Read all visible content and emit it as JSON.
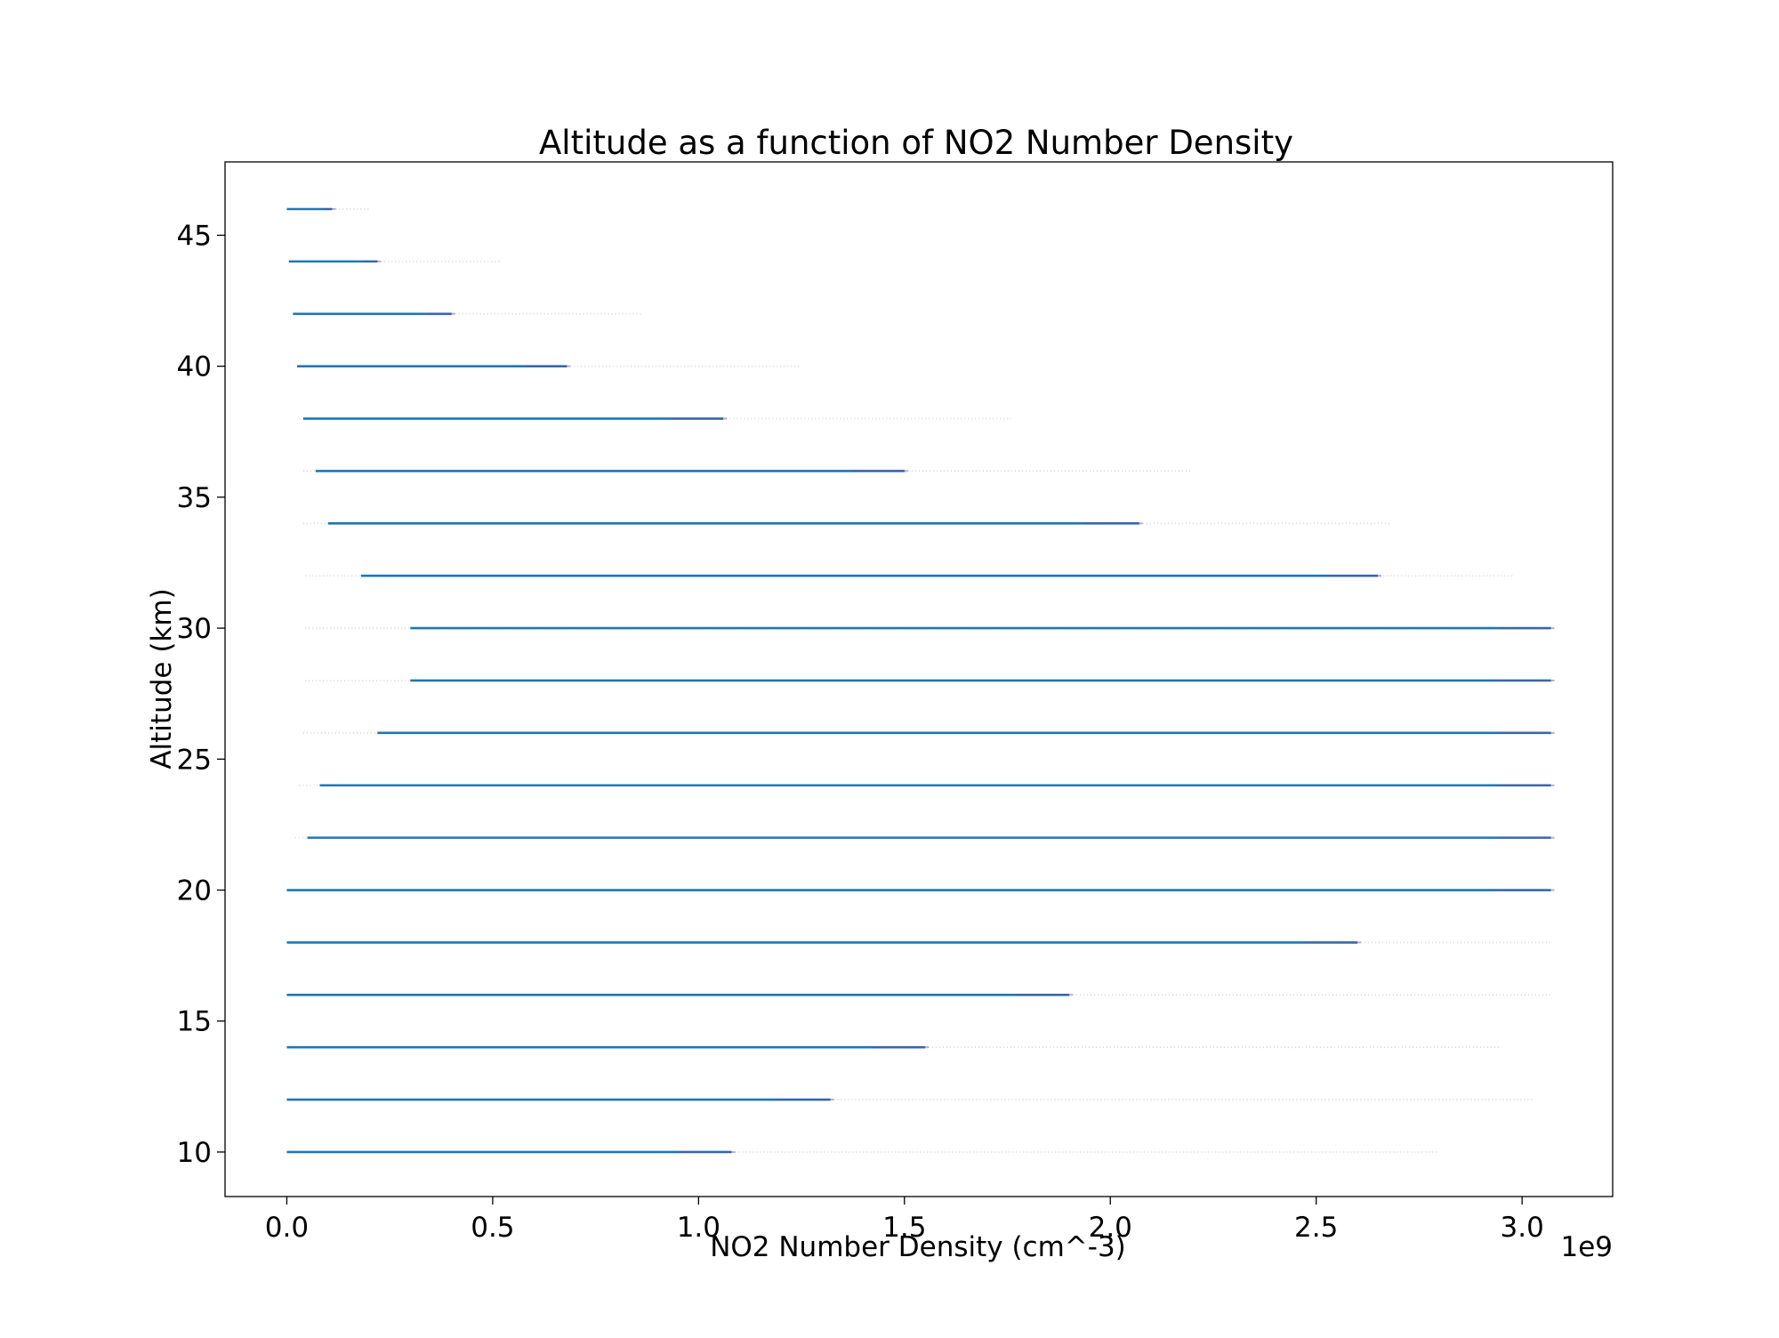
{
  "chart_data": {
    "type": "scatter",
    "title": "Altitude as a function of NO2 Number Density",
    "xlabel": "NO2 Number Density (cm^-3)",
    "ylabel": "Altitude (km)",
    "x_offset_label": "1e9",
    "xlim": [
      -0.15,
      3.22
    ],
    "ylim": [
      8.3,
      47.8
    ],
    "x_ticks": [
      0.0,
      0.5,
      1.0,
      1.5,
      2.0,
      2.5,
      3.0
    ],
    "x_tick_labels": [
      "0.0",
      "0.5",
      "1.0",
      "1.5",
      "2.0",
      "2.5",
      "3.0"
    ],
    "y_ticks": [
      10,
      15,
      20,
      25,
      30,
      35,
      40,
      45
    ],
    "y_tick_labels": [
      "10",
      "15",
      "20",
      "25",
      "30",
      "35",
      "40",
      "45"
    ],
    "grid": false,
    "legend": "none",
    "colors": {
      "series": "#1f77b4",
      "accent": "#6a4c93",
      "faint": "#9a9a9a"
    },
    "series": [
      {
        "rows": [
          {
            "altitude": 46,
            "dense_x": [
              0.0,
              0.11
            ],
            "sparse_x": [
              0.11,
              0.2
            ]
          },
          {
            "altitude": 44,
            "dense_x": [
              0.005,
              0.22
            ],
            "sparse_x": [
              0.22,
              0.52
            ]
          },
          {
            "altitude": 42,
            "dense_x": [
              0.015,
              0.4
            ],
            "sparse_x": [
              0.4,
              0.86
            ]
          },
          {
            "altitude": 40,
            "dense_x": [
              0.025,
              0.68
            ],
            "sparse_x": [
              0.68,
              1.25
            ]
          },
          {
            "altitude": 38,
            "dense_x": [
              0.04,
              1.06
            ],
            "sparse_x": [
              0.03,
              1.76
            ]
          },
          {
            "altitude": 36,
            "dense_x": [
              0.07,
              1.5
            ],
            "sparse_x": [
              0.04,
              2.2
            ]
          },
          {
            "altitude": 34,
            "dense_x": [
              0.1,
              2.07
            ],
            "sparse_x": [
              0.04,
              2.68
            ]
          },
          {
            "altitude": 32,
            "dense_x": [
              0.18,
              2.65
            ],
            "sparse_x": [
              0.045,
              2.98
            ]
          },
          {
            "altitude": 30,
            "dense_x": [
              0.3,
              3.07
            ],
            "sparse_x": [
              0.045,
              3.07
            ]
          },
          {
            "altitude": 28,
            "dense_x": [
              0.3,
              3.07
            ],
            "sparse_x": [
              0.045,
              3.07
            ]
          },
          {
            "altitude": 26,
            "dense_x": [
              0.22,
              3.07
            ],
            "sparse_x": [
              0.04,
              3.07
            ]
          },
          {
            "altitude": 24,
            "dense_x": [
              0.08,
              3.07
            ],
            "sparse_x": [
              0.03,
              3.07
            ]
          },
          {
            "altitude": 22,
            "dense_x": [
              0.05,
              3.07
            ],
            "sparse_x": [
              0.02,
              3.07
            ]
          },
          {
            "altitude": 20,
            "dense_x": [
              0.0,
              3.07
            ],
            "sparse_x": [
              0.0,
              3.07
            ]
          },
          {
            "altitude": 18,
            "dense_x": [
              0.0,
              2.6
            ],
            "sparse_x": [
              2.6,
              3.07
            ]
          },
          {
            "altitude": 16,
            "dense_x": [
              0.0,
              1.9
            ],
            "sparse_x": [
              1.9,
              3.07
            ]
          },
          {
            "altitude": 14,
            "dense_x": [
              0.0,
              1.55
            ],
            "sparse_x": [
              1.55,
              2.95
            ]
          },
          {
            "altitude": 12,
            "dense_x": [
              0.0,
              1.32
            ],
            "sparse_x": [
              1.32,
              3.03
            ]
          },
          {
            "altitude": 10,
            "dense_x": [
              0.0,
              1.08
            ],
            "sparse_x": [
              1.08,
              2.8
            ]
          }
        ]
      }
    ]
  }
}
